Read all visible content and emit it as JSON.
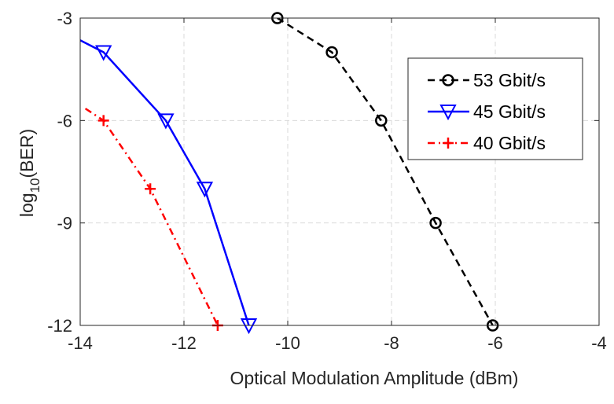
{
  "chart_data": {
    "type": "line",
    "xlabel": "Optical Modulation Amplitude (dBm)",
    "ylabel": {
      "base": "log",
      "subscript": "10",
      "rest": "(BER)"
    },
    "xlim": [
      -14,
      -4
    ],
    "ylim": [
      -12,
      -3
    ],
    "xticks": [
      -14,
      -12,
      -10,
      -8,
      -6,
      -4
    ],
    "yticks": [
      -12,
      -9,
      -6,
      -3
    ],
    "xtick_labels": [
      "-14",
      "-12",
      "-10",
      "-8",
      "-6",
      "-4"
    ],
    "ytick_labels": [
      "-12",
      "-9",
      "-6",
      "-3"
    ],
    "grid": true,
    "legend_position": "top-right",
    "series": [
      {
        "name": "53 Gbit/s",
        "color": "#000000",
        "line_style": "dashed",
        "marker": "circle",
        "x": [
          -10.2,
          -9.15,
          -8.2,
          -7.15,
          -6.05
        ],
        "y": [
          -3,
          -4,
          -6,
          -9,
          -12
        ],
        "line_x": [
          -10.2,
          -9.15,
          -8.2,
          -7.15,
          -6.05
        ],
        "line_y": [
          -3,
          -4,
          -6,
          -9,
          -12
        ]
      },
      {
        "name": "45 Gbit/s",
        "color": "#0000ff",
        "line_style": "solid",
        "marker": "triangle-down",
        "x": [
          -13.55,
          -12.35,
          -11.6,
          -10.75
        ],
        "y": [
          -4,
          -6,
          -8,
          -12
        ],
        "line_x": [
          -14,
          -13.55,
          -12.35,
          -11.6,
          -10.75
        ],
        "line_y": [
          -3.65,
          -4,
          -6,
          -8,
          -12
        ]
      },
      {
        "name": "40 Gbit/s",
        "color": "#ff0000",
        "line_style": "dashdot",
        "marker": "plus",
        "x": [
          -13.55,
          -12.65,
          -11.35
        ],
        "y": [
          -6,
          -8,
          -12
        ],
        "line_x": [
          -13.9,
          -13.55,
          -12.65,
          -11.35
        ],
        "line_y": [
          -5.65,
          -6,
          -8,
          -12
        ]
      }
    ]
  }
}
